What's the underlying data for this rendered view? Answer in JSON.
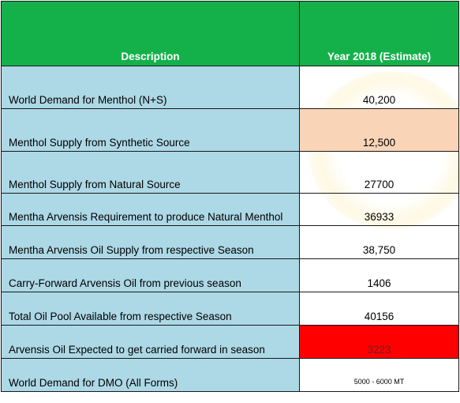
{
  "header": {
    "description": "Description",
    "year": "Year 2018 (Estimate)"
  },
  "rows": [
    {
      "description": "World Demand for Menthol (N+S)",
      "value": "40,200"
    },
    {
      "description": "Menthol Supply from Synthetic Source",
      "value": "12,500",
      "highlight": "#f9d4b6"
    },
    {
      "description": "Menthol Supply from Natural Source",
      "value": "27700"
    },
    {
      "description": "Mentha Arvensis Requirement to produce Natural Menthol",
      "value": "36933"
    },
    {
      "description": "Mentha Arvensis Oil Supply from respective Season",
      "value": "38,750"
    },
    {
      "description": "Carry-Forward Arvensis Oil from previous season",
      "value": "1406"
    },
    {
      "description": "Total Oil Pool Available from respective Season",
      "value": "40156"
    },
    {
      "description": "Arvensis Oil Expected to get carried forward in season",
      "value": "3223",
      "highlight": "#ff0000"
    },
    {
      "description": "World Demand for DMO (All Forms)",
      "value": "5000 - 6000 MT"
    }
  ],
  "colors": {
    "header_bg": "#14b14b",
    "description_bg": "#add8e6"
  }
}
